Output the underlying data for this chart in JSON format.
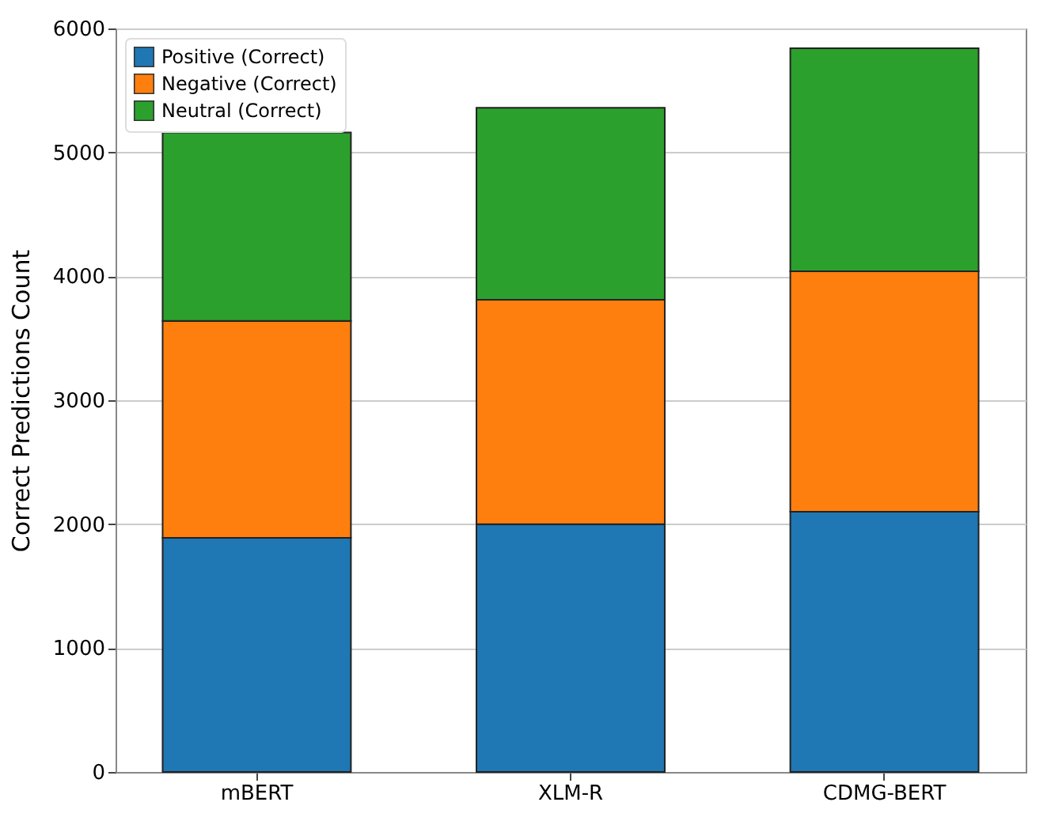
{
  "chart_data": {
    "type": "bar",
    "stacked": true,
    "ylabel": "Correct Predictions Count",
    "categories": [
      "mBERT",
      "XLM-R",
      "CDMG-BERT"
    ],
    "series": [
      {
        "name": "Positive (Correct)",
        "color": "#1f77b4",
        "values": [
          1890,
          2000,
          2100
        ]
      },
      {
        "name": "Negative (Correct)",
        "color": "#ff7f0e",
        "values": [
          1750,
          1810,
          1940
        ]
      },
      {
        "name": "Neutral (Correct)",
        "color": "#2ca02c",
        "values": [
          1520,
          1550,
          1800
        ]
      }
    ],
    "ylim": [
      0,
      6000
    ],
    "yticks": [
      0,
      1000,
      2000,
      3000,
      4000,
      5000,
      6000
    ],
    "grid": "y",
    "legend": "top left"
  }
}
